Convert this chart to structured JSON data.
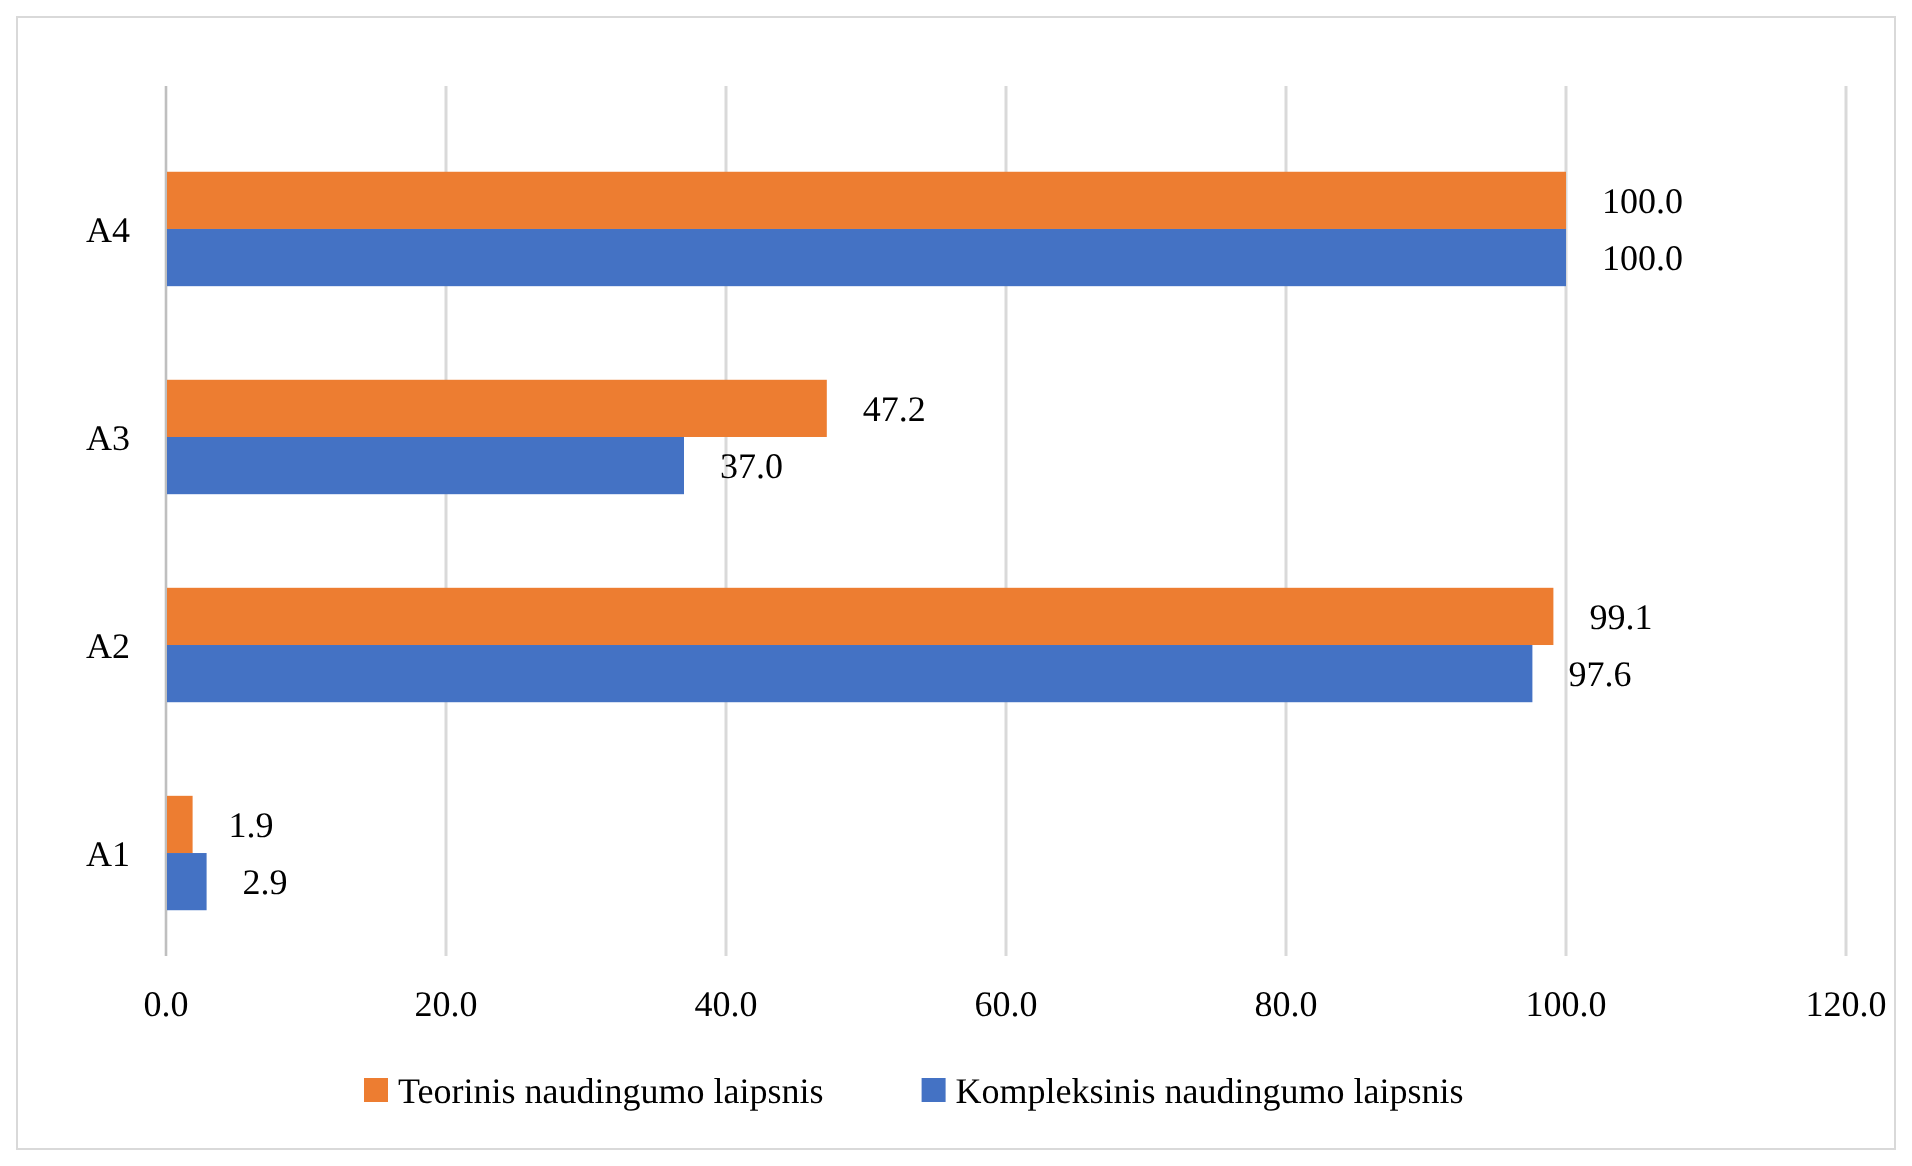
{
  "chart_data": {
    "type": "bar",
    "orientation": "horizontal",
    "categories": [
      "A4",
      "A3",
      "A2",
      "A1"
    ],
    "series": [
      {
        "name": "Teorinis naudingumo laipsnis",
        "color": "#ed7d31",
        "values": [
          100.0,
          47.2,
          99.1,
          1.9
        ],
        "value_labels": [
          "100.0",
          "47.2",
          "99.1",
          "1.9"
        ]
      },
      {
        "name": "Kompleksinis naudingumo laipsnis",
        "color": "#4472c4",
        "values": [
          100.0,
          37.0,
          97.6,
          2.9
        ],
        "value_labels": [
          "100.0",
          "37.0",
          "97.6",
          "2.9"
        ]
      }
    ],
    "xlim": [
      0,
      120
    ],
    "xticks": [
      {
        "value": 0,
        "label": "0.0"
      },
      {
        "value": 20,
        "label": "20.0"
      },
      {
        "value": 40,
        "label": "40.0"
      },
      {
        "value": 60,
        "label": "60.0"
      },
      {
        "value": 80,
        "label": "80.0"
      },
      {
        "value": 100,
        "label": "100.0"
      },
      {
        "value": 120,
        "label": "120.0"
      }
    ],
    "grid": "x",
    "legend": "bottom"
  }
}
